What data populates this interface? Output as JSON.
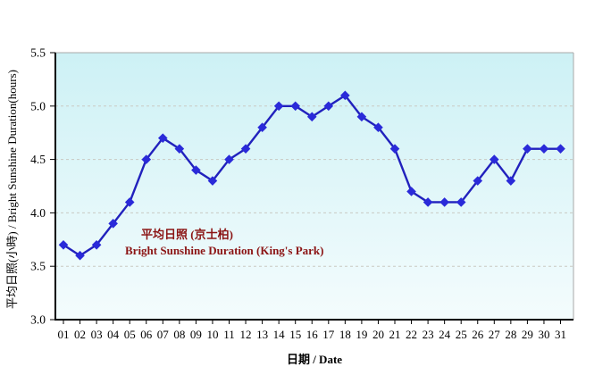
{
  "chart_data": {
    "type": "line",
    "x": [
      "01",
      "02",
      "03",
      "04",
      "05",
      "06",
      "07",
      "08",
      "09",
      "10",
      "11",
      "12",
      "13",
      "14",
      "15",
      "16",
      "17",
      "18",
      "19",
      "20",
      "21",
      "22",
      "23",
      "24",
      "25",
      "26",
      "27",
      "28",
      "29",
      "30",
      "31"
    ],
    "values": [
      3.7,
      3.6,
      3.7,
      3.9,
      4.1,
      4.5,
      4.7,
      4.6,
      4.4,
      4.3,
      4.5,
      4.6,
      4.8,
      5.0,
      5.0,
      4.9,
      5.0,
      5.1,
      4.9,
      4.8,
      4.6,
      4.2,
      4.1,
      4.1,
      4.1,
      4.3,
      4.5,
      4.3,
      4.6,
      4.6,
      4.6
    ],
    "title": "",
    "xlabel": "日期 / Date",
    "ylabel": "平均日照(小時) / Bright Sunshine Duration(hours)",
    "ylim": [
      3.0,
      5.5
    ],
    "yticks": [
      3.0,
      3.5,
      4.0,
      4.5,
      5.0,
      5.5
    ],
    "ytick_labels": [
      "3.0",
      "3.5",
      "4.0",
      "4.5",
      "5.0",
      "5.5"
    ],
    "grid": "horizontal dashed",
    "legend_position": "inside lower-left",
    "legend": [
      "平均日照 (京士柏)",
      "Bright Sunshine Duration (King's Park)"
    ],
    "colors": {
      "line": "#2121bd",
      "marker": "#2a2ad9",
      "legend_text": "#8b1414",
      "plot_bg_top": "#cdf1f5",
      "plot_bg_bottom": "#f4fcfd",
      "gridline": "#c9c9c2",
      "axis": "#000000",
      "frame": "#a8a8a8",
      "tick_text": "#000000"
    }
  }
}
